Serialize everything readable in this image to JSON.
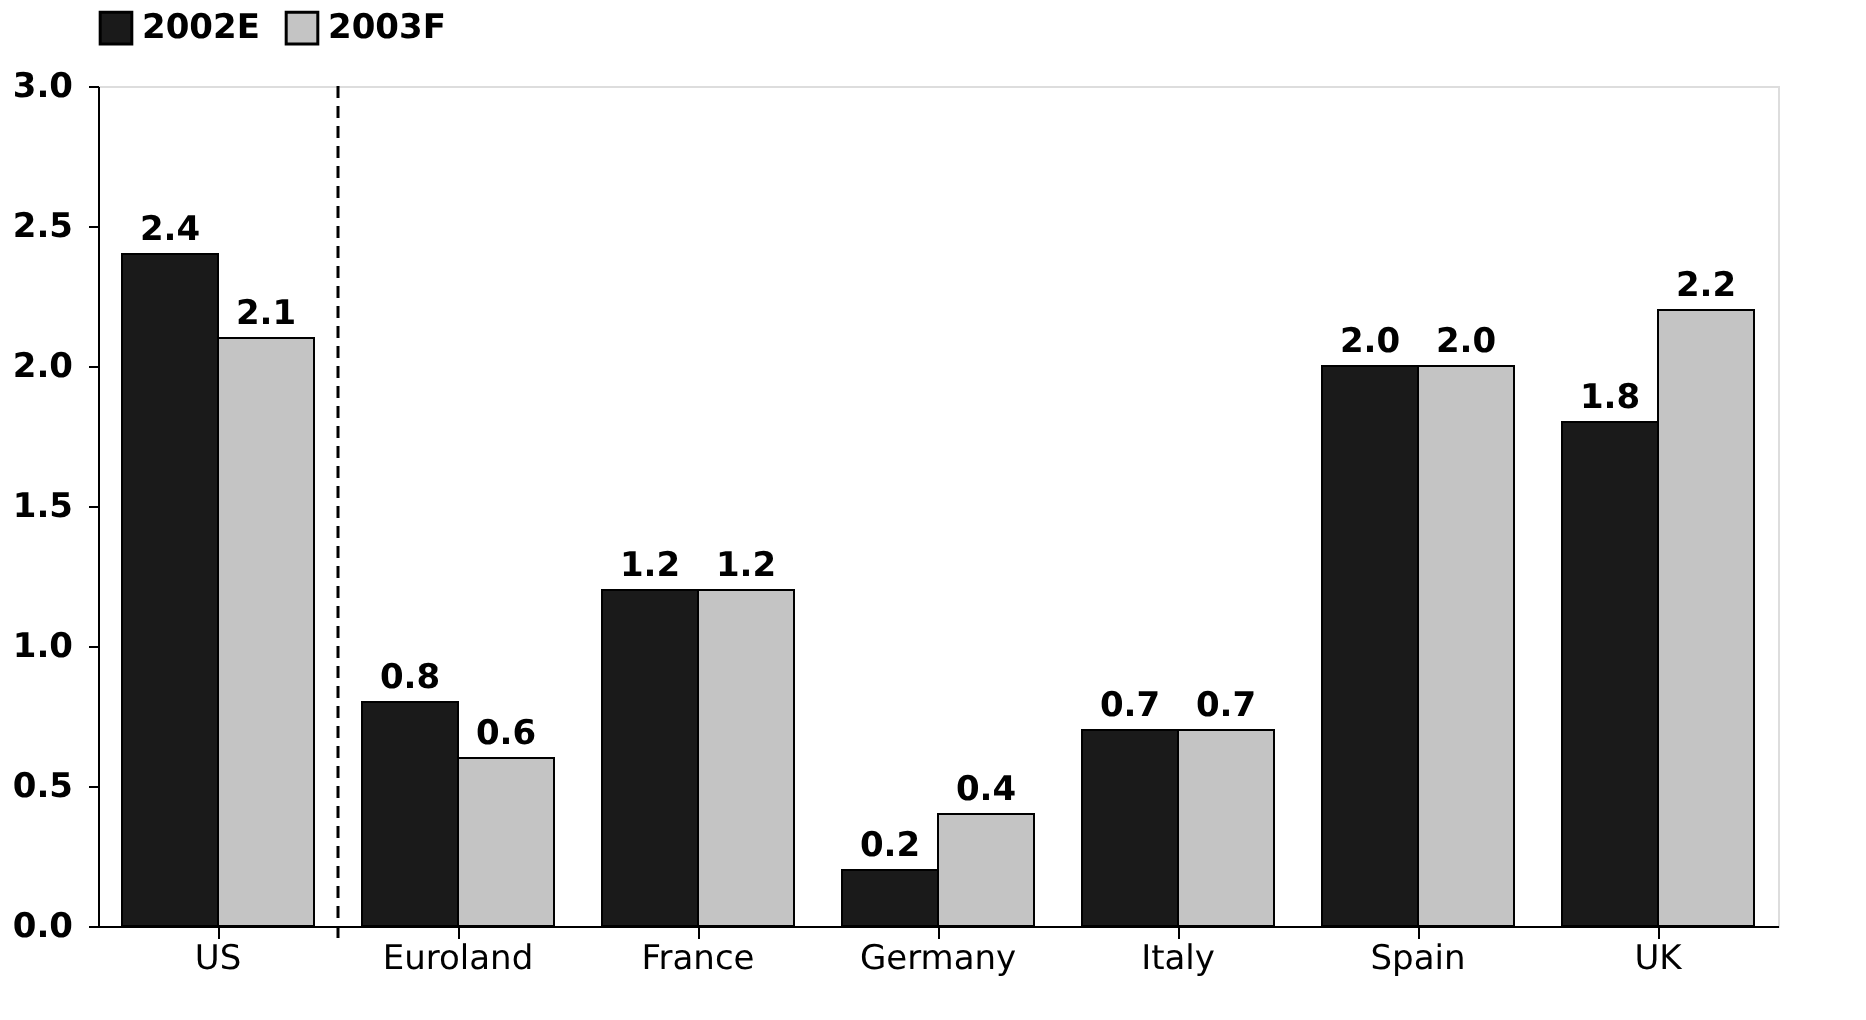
{
  "chart_data": {
    "type": "bar",
    "categories": [
      "US",
      "Euroland",
      "France",
      "Germany",
      "Italy",
      "Spain",
      "UK"
    ],
    "series": [
      {
        "name": "2002E",
        "color": "#1a1a1a",
        "values": [
          2.4,
          0.8,
          1.2,
          0.2,
          0.7,
          2.0,
          1.8
        ],
        "value_labels": [
          "2.4",
          "0.8",
          "1.2",
          "0.2",
          "0.7",
          "2.0",
          "1.8"
        ]
      },
      {
        "name": "2003F",
        "color": "#c4c4c4",
        "values": [
          2.1,
          0.6,
          1.2,
          0.4,
          0.7,
          2.0,
          2.2
        ],
        "value_labels": [
          "2.1",
          "0.6",
          "1.2",
          "0.4",
          "0.7",
          "2.0",
          "2.2"
        ]
      }
    ],
    "ylim": [
      0,
      3
    ],
    "yticks": [
      {
        "value": 0,
        "label": "0.0"
      },
      {
        "value": 0.5,
        "label": "0.5"
      },
      {
        "value": 1,
        "label": "1.0"
      },
      {
        "value": 1.5,
        "label": "1.5"
      },
      {
        "value": 2,
        "label": "2.0"
      },
      {
        "value": 2.5,
        "label": "2.5"
      },
      {
        "value": 3,
        "label": "3.0"
      }
    ],
    "grid": false,
    "legend": "top"
  }
}
